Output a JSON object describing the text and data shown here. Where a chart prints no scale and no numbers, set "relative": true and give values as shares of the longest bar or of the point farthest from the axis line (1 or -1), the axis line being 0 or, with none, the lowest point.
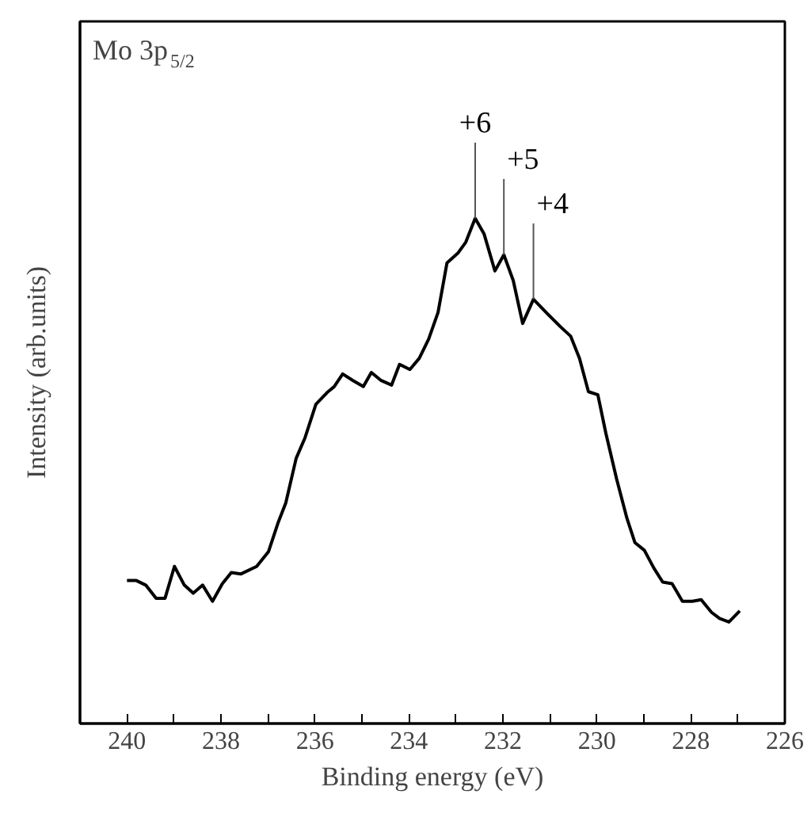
{
  "chart_data": {
    "type": "line",
    "relative": true,
    "title": "Mo 3p$_{5/2}$",
    "xlabel": "Binding energy (eV)",
    "ylabel": "Intensity (arb.units)",
    "xlim": [
      241,
      226
    ],
    "xticks": [
      240,
      {
        "value": 239,
        "label": null
      },
      238,
      {
        "value": 237,
        "label": null
      },
      236,
      {
        "value": 235,
        "label": null
      },
      234,
      {
        "value": 233,
        "label": null
      },
      232,
      {
        "value": 231,
        "label": null
      },
      230,
      {
        "value": 229,
        "label": null
      },
      228,
      {
        "value": 227,
        "label": null
      },
      226
    ],
    "grid": false,
    "marker": "none",
    "line_style": "solid",
    "series": [
      {
        "color": "#000000",
        "x": [
          240.0,
          239.8,
          239.6,
          239.38,
          239.19,
          238.99,
          238.78,
          238.59,
          238.39,
          238.18,
          237.97,
          237.78,
          237.58,
          237.24,
          236.99,
          236.79,
          236.62,
          236.4,
          236.21,
          235.98,
          235.72,
          235.59,
          235.41,
          235.19,
          234.97,
          234.8,
          234.59,
          234.37,
          234.2,
          233.98,
          233.78,
          233.58,
          233.38,
          233.19,
          232.96,
          232.79,
          232.59,
          232.4,
          232.17,
          231.98,
          231.78,
          231.58,
          231.35,
          231.05,
          230.77,
          230.56,
          230.37,
          230.18,
          229.98,
          229.81,
          229.58,
          229.36,
          229.19,
          228.99,
          228.79,
          228.6,
          228.4,
          228.18,
          227.97,
          227.78,
          227.56,
          227.39,
          227.19,
          226.96
        ],
        "values": [
          0.283,
          0.283,
          0.274,
          0.248,
          0.248,
          0.311,
          0.274,
          0.258,
          0.274,
          0.242,
          0.277,
          0.299,
          0.296,
          0.311,
          0.34,
          0.396,
          0.437,
          0.525,
          0.566,
          0.632,
          0.657,
          0.667,
          0.692,
          0.679,
          0.667,
          0.695,
          0.679,
          0.67,
          0.711,
          0.701,
          0.723,
          0.761,
          0.814,
          0.912,
          0.931,
          0.953,
          1.0,
          0.969,
          0.896,
          0.928,
          0.877,
          0.792,
          0.84,
          0.811,
          0.785,
          0.767,
          0.723,
          0.657,
          0.651,
          0.575,
          0.484,
          0.406,
          0.358,
          0.343,
          0.308,
          0.28,
          0.277,
          0.242,
          0.242,
          0.245,
          0.22,
          0.208,
          0.201,
          0.223
        ]
      }
    ],
    "annotations": [
      {
        "text": "+6",
        "x": 232.59,
        "y": 1.0
      },
      {
        "text": "+5",
        "x": 231.98,
        "y": 0.928
      },
      {
        "text": "+4",
        "x": 231.35,
        "y": 0.84
      }
    ]
  }
}
